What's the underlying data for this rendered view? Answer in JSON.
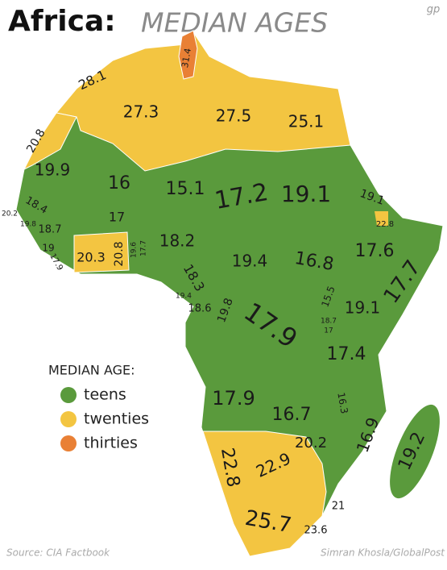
{
  "header": {
    "title": "Africa:",
    "subtitle": "MEDIAN AGES",
    "logo": "gp"
  },
  "legend": {
    "title": "MEDIAN AGE:",
    "items": [
      {
        "label": "teens",
        "color": "#5a9a3c"
      },
      {
        "label": "twenties",
        "color": "#f3c541"
      },
      {
        "label": "thirties",
        "color": "#e98035"
      }
    ]
  },
  "map": {
    "labels": [
      "28.1",
      "31.4",
      "27.3",
      "27.5",
      "25.1",
      "20.8",
      "19.9",
      "16",
      "15.1",
      "17.2",
      "19.1",
      "19.1",
      "22.8",
      "20.2",
      "18.4",
      "19.8",
      "18.7",
      "17",
      "19",
      "17.9",
      "20.3",
      "20.8",
      "19.6",
      "17.7",
      "18.2",
      "19.4",
      "16.8",
      "17.6",
      "18.3",
      "19.4",
      "18.6",
      "19.8",
      "15.5",
      "17.7",
      "17.9",
      "18.7",
      "17",
      "19.1",
      "17.4",
      "17.9",
      "16.7",
      "16.3",
      "16.9",
      "19.2",
      "22.8",
      "22.9",
      "20.2",
      "21",
      "25.7",
      "23.6"
    ]
  },
  "footer": {
    "source": "Source: CIA Factbook",
    "credit": "Simran Khosla/GlobalPost"
  }
}
